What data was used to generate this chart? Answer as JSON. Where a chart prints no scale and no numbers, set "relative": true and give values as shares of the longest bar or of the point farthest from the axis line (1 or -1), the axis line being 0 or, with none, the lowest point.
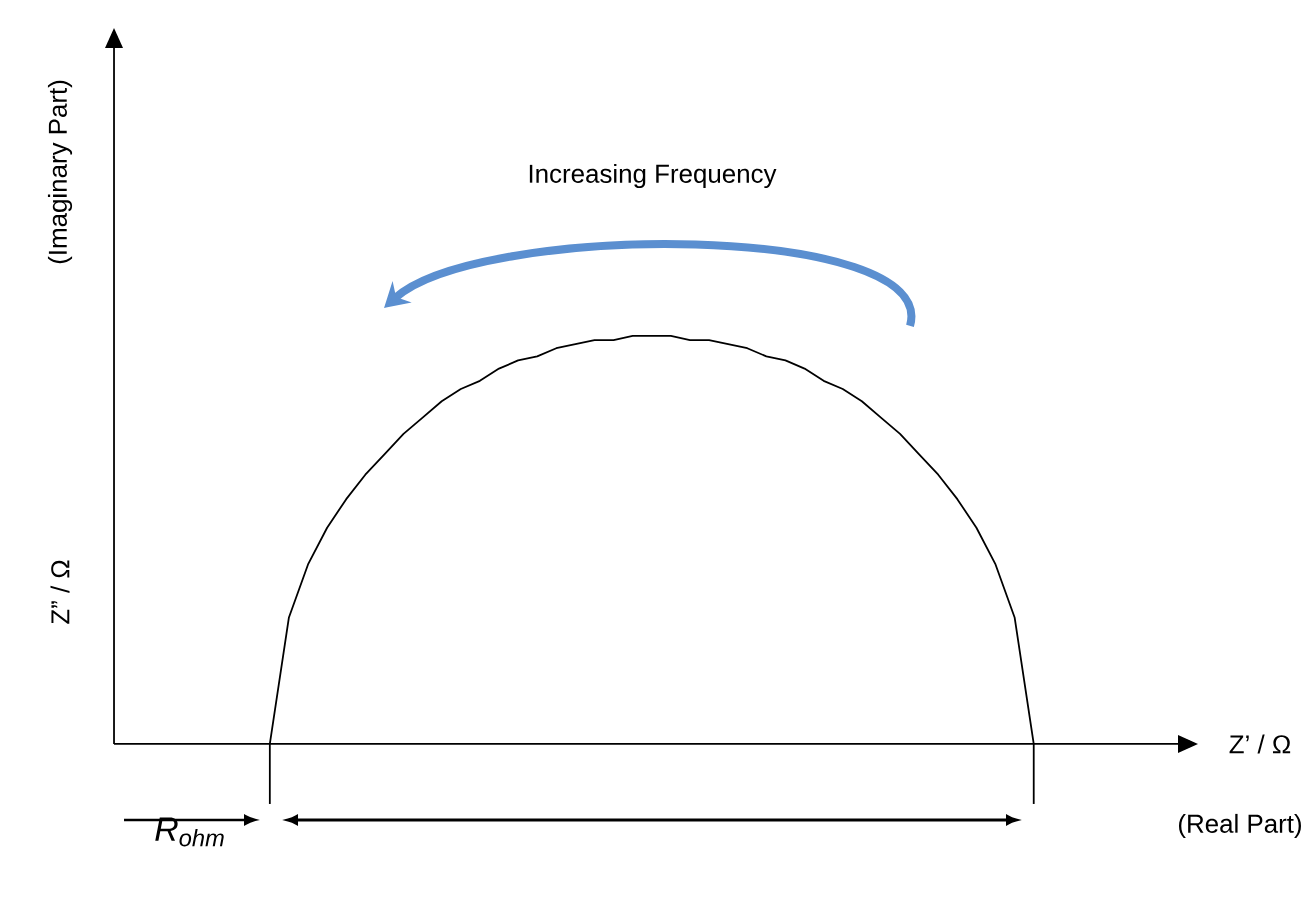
{
  "chart_data": {
    "type": "line",
    "relative": true,
    "annotations": [
      "Increasing Frequency",
      "Z” / Ω",
      "(Imaginary Part)",
      "Z’ / Ω",
      "(Real Part)",
      "R$_{ohm}$"
    ],
    "categories": [
      null,
      null,
      null,
      null,
      null,
      null,
      null,
      null,
      null,
      null,
      null,
      null,
      null,
      null,
      null,
      null,
      null,
      null,
      null,
      null,
      null,
      null,
      null,
      null,
      null,
      null,
      null,
      null,
      null,
      null,
      null,
      null,
      null,
      null,
      null,
      null,
      null,
      null,
      null,
      null,
      null
    ],
    "series": [
      {
        "color": "#000000",
        "values": [
          0,
          0.31,
          0.44,
          0.53,
          0.6,
          0.66,
          0.71,
          0.76,
          0.8,
          0.84,
          0.87,
          0.89,
          0.92,
          0.94,
          0.95,
          0.97,
          0.98,
          0.99,
          0.99,
          1,
          1,
          1,
          0.99,
          0.99,
          0.98,
          0.97,
          0.95,
          0.94,
          0.92,
          0.89,
          0.87,
          0.84,
          0.8,
          0.76,
          0.71,
          0.66,
          0.6,
          0.53,
          0.44,
          0.31,
          0
        ]
      }
    ],
    "marker": "none",
    "line_style": "solid"
  }
}
